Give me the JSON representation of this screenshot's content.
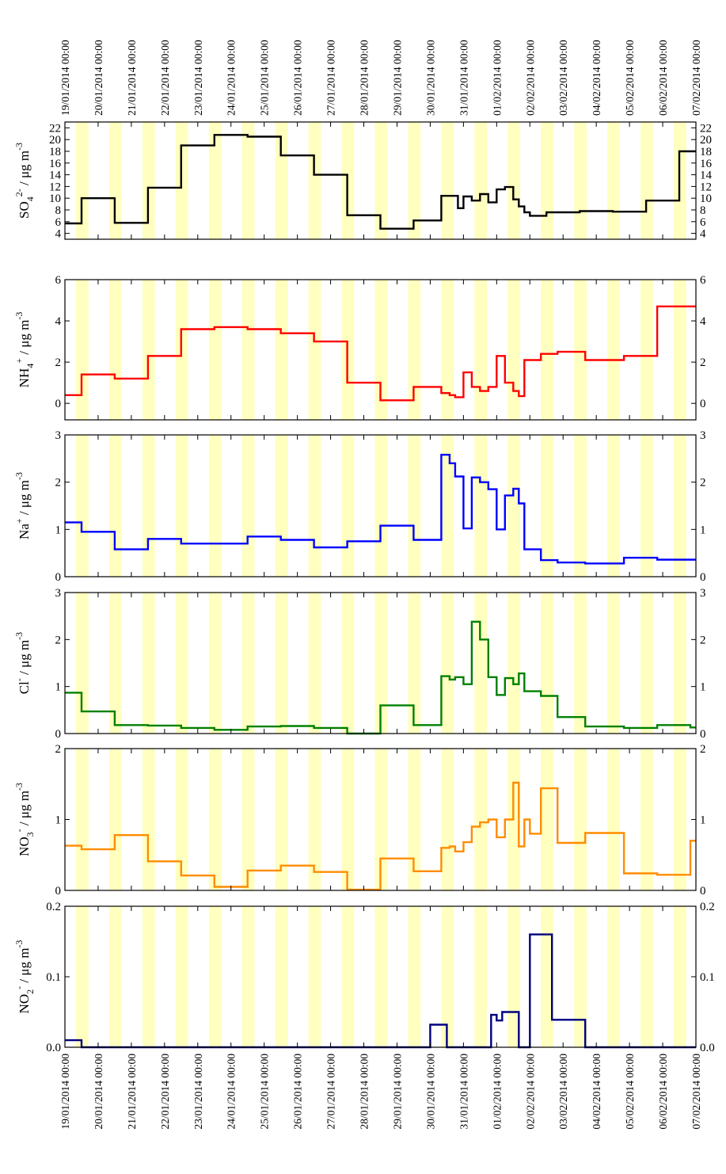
{
  "chart_data": {
    "type": "line",
    "step": true,
    "x_type": "datetime",
    "x_range": [
      "19/01/2014 00:00",
      "07/02/2014 00:00"
    ],
    "x_tick_labels": [
      "19/01/2014 00:00",
      "20/01/2014 00:00",
      "21/01/2014 00:00",
      "22/01/2014 00:00",
      "23/01/2014 00:00",
      "24/01/2014 00:00",
      "25/01/2014 00:00",
      "26/01/2014 00:00",
      "27/01/2014 00:00",
      "28/01/2014 00:00",
      "29/01/2014 00:00",
      "30/01/2014 00:00",
      "31/01/2014 00:00",
      "01/02/2014 00:00",
      "02/02/2014 00:00",
      "03/02/2014 00:00",
      "04/02/2014 00:00",
      "05/02/2014 00:00",
      "06/02/2014 00:00",
      "07/02/2014 00:00"
    ],
    "tick_labels_top": true,
    "tick_labels_bottom": true,
    "background_bands": {
      "color": "#ffffbf",
      "description": "daytime shading",
      "periods": [
        [
          "19/01/2014 08:00",
          "19/01/2014 17:00"
        ],
        [
          "20/01/2014 08:00",
          "20/01/2014 17:00"
        ],
        [
          "21/01/2014 08:00",
          "21/01/2014 17:00"
        ],
        [
          "22/01/2014 08:00",
          "22/01/2014 17:00"
        ],
        [
          "23/01/2014 08:00",
          "23/01/2014 17:00"
        ],
        [
          "24/01/2014 08:00",
          "24/01/2014 17:00"
        ],
        [
          "25/01/2014 08:00",
          "25/01/2014 17:00"
        ],
        [
          "26/01/2014 08:00",
          "26/01/2014 17:00"
        ],
        [
          "27/01/2014 08:00",
          "27/01/2014 17:00"
        ],
        [
          "28/01/2014 08:00",
          "28/01/2014 17:00"
        ],
        [
          "29/01/2014 08:00",
          "29/01/2014 17:00"
        ],
        [
          "30/01/2014 08:00",
          "30/01/2014 17:00"
        ],
        [
          "31/01/2014 08:00",
          "31/01/2014 17:00"
        ],
        [
          "01/02/2014 08:00",
          "01/02/2014 17:00"
        ],
        [
          "02/02/2014 08:00",
          "02/02/2014 17:00"
        ],
        [
          "03/02/2014 08:00",
          "03/02/2014 17:00"
        ],
        [
          "04/02/2014 08:00",
          "04/02/2014 17:00"
        ],
        [
          "05/02/2014 08:00",
          "05/02/2014 17:00"
        ],
        [
          "06/02/2014 08:00",
          "06/02/2014 17:00"
        ]
      ]
    },
    "panels": [
      {
        "name": "sulfate",
        "ylabel": {
          "main": "SO",
          "sub": "4",
          "sup": "2-",
          "unit": " / μg m",
          "unit_sup": "-3"
        },
        "ylim": [
          3,
          23
        ],
        "yticks": [
          4,
          6,
          8,
          10,
          12,
          14,
          16,
          18,
          20,
          22
        ],
        "ytick_labels": [
          "4",
          "6",
          "8",
          "10",
          "12",
          "14",
          "16",
          "18",
          "20",
          "22"
        ],
        "color": "#000000",
        "x": [
          "19/01/2014 00:00",
          "19/01/2014 12:00",
          "20/01/2014 12:00",
          "21/01/2014 12:00",
          "22/01/2014 12:00",
          "23/01/2014 12:00",
          "24/01/2014 12:00",
          "25/01/2014 12:00",
          "26/01/2014 12:00",
          "27/01/2014 12:00",
          "28/01/2014 12:00",
          "29/01/2014 12:00",
          "30/01/2014 08:00",
          "30/01/2014 20:00",
          "31/01/2014 00:00",
          "31/01/2014 06:00",
          "31/01/2014 12:00",
          "31/01/2014 18:00",
          "01/02/2014 00:00",
          "01/02/2014 06:00",
          "01/02/2014 12:00",
          "01/02/2014 16:00",
          "01/02/2014 20:00",
          "02/02/2014 00:00",
          "02/02/2014 12:00",
          "03/02/2014 12:00",
          "04/02/2014 12:00",
          "05/02/2014 12:00",
          "06/02/2014 12:00",
          "07/02/2014 00:00"
        ],
        "y": [
          5.7,
          10,
          5.8,
          11.8,
          19,
          20.8,
          20.5,
          17.3,
          14,
          7.1,
          4.8,
          6.2,
          10.4,
          8.3,
          10.3,
          9.6,
          10.7,
          9.3,
          11.5,
          11.9,
          9.8,
          8.6,
          7.6,
          7,
          7.6,
          7.8,
          7.7,
          9.6,
          18,
          18
        ]
      },
      {
        "name": "ammonium",
        "ylabel": {
          "main": "NH",
          "sub": "4",
          "sup": "+",
          "unit": " / μg m",
          "unit_sup": "-3"
        },
        "ylim": [
          -0.8,
          6
        ],
        "yticks": [
          0,
          2,
          4,
          6
        ],
        "ytick_labels": [
          "0",
          "2",
          "4",
          "6"
        ],
        "color": "#ff0000",
        "x": [
          "19/01/2014 00:00",
          "19/01/2014 12:00",
          "20/01/2014 12:00",
          "21/01/2014 12:00",
          "22/01/2014 12:00",
          "23/01/2014 12:00",
          "24/01/2014 12:00",
          "25/01/2014 12:00",
          "26/01/2014 12:00",
          "27/01/2014 12:00",
          "28/01/2014 12:00",
          "29/01/2014 12:00",
          "30/01/2014 08:00",
          "30/01/2014 14:00",
          "30/01/2014 18:00",
          "31/01/2014 00:00",
          "31/01/2014 06:00",
          "31/01/2014 12:00",
          "31/01/2014 18:00",
          "01/02/2014 00:00",
          "01/02/2014 06:00",
          "01/02/2014 12:00",
          "01/02/2014 16:00",
          "01/02/2014 20:00",
          "02/02/2014 00:00",
          "02/02/2014 08:00",
          "02/02/2014 20:00",
          "03/02/2014 16:00",
          "04/02/2014 20:00",
          "05/02/2014 20:00",
          "06/02/2014 20:00",
          "07/02/2014 00:00"
        ],
        "y": [
          0.4,
          1.4,
          1.2,
          2.3,
          3.6,
          3.7,
          3.6,
          3.4,
          3,
          1,
          0.15,
          0.8,
          0.5,
          0.4,
          0.3,
          1.5,
          0.8,
          0.6,
          0.8,
          2.3,
          1.0,
          0.6,
          0.35,
          2.1,
          2.1,
          2.4,
          2.5,
          2.1,
          2.3,
          4.7,
          4.7,
          4.7
        ]
      },
      {
        "name": "sodium",
        "ylabel": {
          "main": "Na",
          "sub": "",
          "sup": "+",
          "unit": " / μg m",
          "unit_sup": "-3"
        },
        "ylim": [
          0,
          3
        ],
        "yticks": [
          0,
          1,
          2,
          3
        ],
        "ytick_labels": [
          "0",
          "1",
          "2",
          "3"
        ],
        "color": "#0000ff",
        "x": [
          "19/01/2014 00:00",
          "19/01/2014 12:00",
          "20/01/2014 12:00",
          "21/01/2014 12:00",
          "22/01/2014 12:00",
          "23/01/2014 12:00",
          "24/01/2014 12:00",
          "25/01/2014 12:00",
          "26/01/2014 12:00",
          "27/01/2014 12:00",
          "28/01/2014 12:00",
          "29/01/2014 12:00",
          "30/01/2014 08:00",
          "30/01/2014 14:00",
          "30/01/2014 18:00",
          "31/01/2014 00:00",
          "31/01/2014 06:00",
          "31/01/2014 12:00",
          "31/01/2014 18:00",
          "01/02/2014 00:00",
          "01/02/2014 06:00",
          "01/02/2014 12:00",
          "01/02/2014 16:00",
          "01/02/2014 20:00",
          "02/02/2014 00:00",
          "02/02/2014 08:00",
          "02/02/2014 20:00",
          "03/02/2014 16:00",
          "04/02/2014 20:00",
          "05/02/2014 20:00",
          "06/02/2014 20:00",
          "07/02/2014 00:00"
        ],
        "y": [
          1.15,
          0.95,
          0.58,
          0.8,
          0.7,
          0.7,
          0.85,
          0.78,
          0.62,
          0.75,
          1.08,
          0.78,
          2.58,
          2.4,
          2.12,
          1.02,
          2.1,
          2.0,
          1.85,
          1.0,
          1.72,
          1.86,
          1.55,
          0.58,
          0.58,
          0.35,
          0.3,
          0.28,
          0.4,
          0.36,
          0.36,
          0.36
        ]
      },
      {
        "name": "chloride",
        "ylabel": {
          "main": "Cl",
          "sub": "",
          "sup": "-",
          "unit": " / μg m",
          "unit_sup": "-3"
        },
        "ylim": [
          0,
          3
        ],
        "yticks": [
          0,
          1,
          2,
          3
        ],
        "ytick_labels": [
          "0",
          "1",
          "2",
          "3"
        ],
        "color": "#008000",
        "x": [
          "19/01/2014 00:00",
          "19/01/2014 12:00",
          "20/01/2014 12:00",
          "21/01/2014 12:00",
          "22/01/2014 12:00",
          "23/01/2014 12:00",
          "24/01/2014 12:00",
          "25/01/2014 12:00",
          "26/01/2014 12:00",
          "27/01/2014 12:00",
          "28/01/2014 12:00",
          "29/01/2014 12:00",
          "30/01/2014 08:00",
          "30/01/2014 14:00",
          "30/01/2014 18:00",
          "31/01/2014 00:00",
          "31/01/2014 06:00",
          "31/01/2014 12:00",
          "31/01/2014 18:00",
          "01/02/2014 00:00",
          "01/02/2014 06:00",
          "01/02/2014 12:00",
          "01/02/2014 16:00",
          "01/02/2014 20:00",
          "02/02/2014 00:00",
          "02/02/2014 08:00",
          "02/02/2014 20:00",
          "03/02/2014 16:00",
          "04/02/2014 20:00",
          "05/02/2014 20:00",
          "06/02/2014 20:00",
          "07/02/2014 00:00"
        ],
        "y": [
          0.87,
          0.47,
          0.18,
          0.17,
          0.12,
          0.08,
          0.15,
          0.16,
          0.12,
          0.0,
          0.6,
          0.18,
          1.22,
          1.15,
          1.2,
          1.05,
          2.38,
          2.0,
          1.2,
          0.82,
          1.18,
          1.05,
          1.28,
          0.9,
          0.9,
          0.8,
          0.35,
          0.15,
          0.12,
          0.18,
          0.13,
          0.13
        ]
      },
      {
        "name": "nitrate",
        "ylabel": {
          "main": "NO",
          "sub": "3",
          "sup": "-",
          "unit": " / μg m",
          "unit_sup": "-3"
        },
        "ylim": [
          0,
          2
        ],
        "yticks": [
          0,
          1,
          2
        ],
        "ytick_labels": [
          "0",
          "1",
          "2"
        ],
        "color": "#ff8c00",
        "x": [
          "19/01/2014 00:00",
          "19/01/2014 12:00",
          "20/01/2014 12:00",
          "21/01/2014 12:00",
          "22/01/2014 12:00",
          "23/01/2014 12:00",
          "24/01/2014 12:00",
          "25/01/2014 12:00",
          "26/01/2014 12:00",
          "27/01/2014 12:00",
          "28/01/2014 12:00",
          "29/01/2014 12:00",
          "30/01/2014 08:00",
          "30/01/2014 14:00",
          "30/01/2014 18:00",
          "31/01/2014 00:00",
          "31/01/2014 06:00",
          "31/01/2014 12:00",
          "31/01/2014 18:00",
          "01/02/2014 00:00",
          "01/02/2014 06:00",
          "01/02/2014 12:00",
          "01/02/2014 16:00",
          "01/02/2014 20:00",
          "02/02/2014 00:00",
          "02/02/2014 08:00",
          "02/02/2014 20:00",
          "03/02/2014 16:00",
          "04/02/2014 20:00",
          "05/02/2014 20:00",
          "06/02/2014 20:00",
          "07/02/2014 00:00"
        ],
        "y": [
          0.63,
          0.58,
          0.78,
          0.41,
          0.21,
          0.05,
          0.28,
          0.35,
          0.26,
          0.01,
          0.45,
          0.27,
          0.6,
          0.62,
          0.55,
          0.68,
          0.9,
          0.96,
          1.0,
          0.75,
          1.0,
          1.52,
          0.62,
          1.0,
          0.8,
          1.44,
          0.67,
          0.81,
          0.24,
          0.22,
          0.7,
          0.7
        ]
      },
      {
        "name": "nitrite",
        "ylabel": {
          "main": "NO",
          "sub": "2",
          "sup": "-",
          "unit": " / μg m",
          "unit_sup": "-3"
        },
        "ylim": [
          0,
          0.2
        ],
        "yticks": [
          0,
          0.1,
          0.2
        ],
        "ytick_labels": [
          "0.0",
          "0.1",
          "0.2"
        ],
        "color": "#000080",
        "x": [
          "19/01/2014 00:00",
          "19/01/2014 12:00",
          "30/01/2014 00:00",
          "30/01/2014 12:00",
          "31/01/2014 16:00",
          "31/01/2014 20:00",
          "01/02/2014 00:00",
          "01/02/2014 04:00",
          "01/02/2014 16:00",
          "02/02/2014 00:00",
          "02/02/2014 16:00",
          "03/02/2014 16:00",
          "07/02/2014 00:00"
        ],
        "y": [
          0.01,
          0.0,
          0.032,
          0.0,
          0.0,
          0.046,
          0.038,
          0.05,
          0.0,
          0.16,
          0.039,
          0.0,
          0.0
        ]
      }
    ]
  }
}
